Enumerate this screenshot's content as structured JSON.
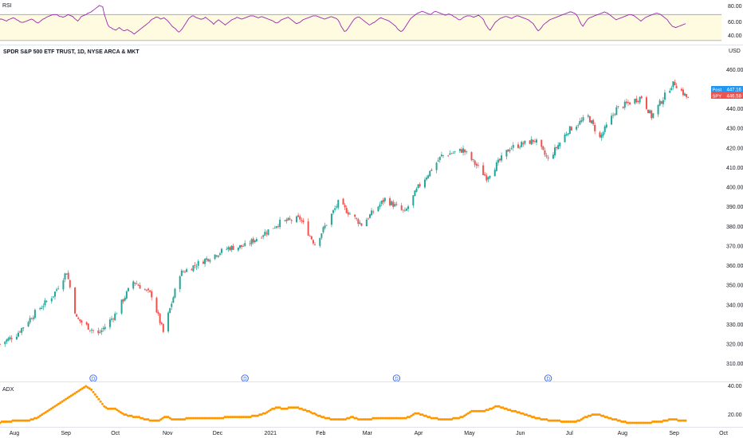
{
  "rsi_pane": {
    "title": "RSI",
    "ticks": [
      "80.00",
      "60.00",
      "40.00"
    ],
    "band": [
      30,
      70
    ],
    "range": [
      25,
      90
    ],
    "colors": {
      "line": "#9c27b0",
      "band_fill": "#fffbe0",
      "band_line": "#9e9e9e"
    },
    "values": [
      63,
      63,
      62,
      61,
      60,
      62,
      63,
      64,
      65,
      64,
      62,
      61,
      59,
      58,
      58,
      59,
      60,
      61,
      62,
      63,
      62,
      60,
      58,
      57,
      59,
      61,
      63,
      64,
      66,
      67,
      68,
      69,
      70,
      70,
      70,
      69,
      67,
      67,
      66,
      67,
      68,
      70,
      69,
      68,
      67,
      64,
      62,
      60,
      63,
      67,
      68,
      69,
      70,
      72,
      73,
      74,
      76,
      78,
      80,
      82,
      84,
      83,
      82,
      70,
      63,
      55,
      51,
      50,
      48,
      47,
      46,
      48,
      50,
      48,
      46,
      45,
      46,
      47,
      45,
      44,
      42,
      40,
      42,
      44,
      46,
      48,
      50,
      52,
      54,
      56,
      58,
      61,
      63,
      64,
      66,
      66,
      65,
      63,
      64,
      65,
      63,
      61,
      58,
      55,
      52,
      50,
      48,
      45,
      43,
      45,
      48,
      52,
      56,
      60,
      64,
      66,
      68,
      68,
      66,
      65,
      64,
      63,
      63,
      64,
      66,
      64,
      62,
      60,
      58,
      55,
      58,
      60,
      62,
      60,
      58,
      56,
      54,
      56,
      58,
      60,
      62,
      63,
      64,
      66,
      65,
      64,
      63,
      64,
      65,
      66,
      67,
      68,
      68,
      68,
      67,
      66,
      65,
      66,
      67,
      66,
      65,
      64,
      63,
      62,
      61,
      60,
      58,
      57,
      58,
      60,
      62,
      63,
      64,
      65,
      66,
      64,
      62,
      60,
      58,
      56,
      57,
      58,
      60,
      62,
      63,
      64,
      65,
      66,
      67,
      68,
      68,
      68,
      67,
      66,
      65,
      64,
      63,
      64,
      65,
      66,
      67,
      66,
      65,
      64,
      62,
      58,
      52,
      48,
      44,
      45,
      48,
      52,
      56,
      60,
      63,
      65,
      66,
      66,
      64,
      62,
      60,
      58,
      56,
      54,
      55,
      57,
      58,
      60,
      62,
      64,
      65,
      64,
      63,
      62,
      61,
      60,
      58,
      56,
      54,
      52,
      48,
      46,
      44,
      45,
      48,
      52,
      56,
      60,
      64,
      66,
      68,
      70,
      72,
      73,
      74,
      75,
      74,
      73,
      72,
      71,
      70,
      72,
      74,
      75,
      74,
      73,
      72,
      71,
      70,
      69,
      70,
      71,
      70,
      69,
      67,
      66,
      64,
      62,
      62,
      64,
      66,
      67,
      68,
      68,
      68,
      67,
      66,
      67,
      68,
      69,
      67,
      65,
      62,
      56,
      52,
      48,
      46,
      50,
      54,
      58,
      60,
      62,
      64,
      65,
      66,
      67,
      67,
      66,
      65,
      64,
      66,
      67,
      68,
      68,
      67,
      66,
      65,
      64,
      63,
      62,
      60,
      58,
      56,
      52,
      48,
      45,
      47,
      50,
      54,
      56,
      58,
      60,
      62,
      63,
      64,
      65,
      66,
      67,
      68,
      69,
      70,
      71,
      72,
      73,
      74,
      74,
      73,
      72,
      70,
      66,
      60,
      55,
      52,
      56,
      60,
      63,
      65,
      66,
      67,
      68,
      69,
      70,
      71,
      72,
      73,
      74,
      73,
      72,
      70,
      68,
      66,
      64,
      62,
      63,
      64,
      65,
      66,
      67,
      68,
      69,
      70,
      70,
      69,
      68,
      66,
      64,
      62,
      60,
      62,
      64,
      66,
      67,
      68,
      69,
      70,
      71,
      72,
      72,
      71,
      70,
      68,
      66,
      64,
      62,
      58,
      55,
      52,
      51,
      50,
      51,
      52,
      53,
      54,
      55,
      56
    ]
  },
  "main_pane": {
    "title": "SPDR S&P 500 ETF TRUST, 1D, NYSE ARCA & MKT",
    "currency": "USD",
    "ticks": [
      "460.00",
      "450.00",
      "440.00",
      "430.00",
      "420.00",
      "410.00",
      "400.00",
      "390.00",
      "380.00",
      "370.00",
      "360.00",
      "350.00",
      "340.00",
      "330.00",
      "320.00",
      "310.00"
    ],
    "price_labels": {
      "post": "Post",
      "post_value": "447.16",
      "symbol": "SPY",
      "symbol_value": "446.58"
    },
    "colors": {
      "up": "#26a69a",
      "down": "#ef5350",
      "post_tag": "#2196f3",
      "symbol_tag": "#ef5350"
    },
    "dividend_marker": "D"
  },
  "adx_pane": {
    "title": "ADX",
    "ticks": [
      "40.00",
      "20.00"
    ],
    "range": [
      12,
      47
    ],
    "colors": {
      "dots": "#ff9800"
    },
    "values": [
      14,
      15,
      15,
      15,
      15,
      15,
      15,
      16,
      16,
      16,
      16,
      16,
      16,
      16,
      16,
      16,
      16,
      17,
      17,
      18,
      18,
      19,
      20,
      21,
      22,
      23,
      24,
      25,
      26,
      27,
      28,
      29,
      30,
      31,
      32,
      33,
      34,
      35,
      36,
      37,
      38,
      39,
      40,
      41,
      42,
      43,
      44,
      45,
      44,
      43,
      42,
      40,
      38,
      36,
      34,
      32,
      30,
      28,
      27,
      26,
      26,
      26,
      26,
      26,
      25,
      24,
      23,
      22,
      21,
      21,
      20,
      20,
      20,
      19,
      19,
      19,
      19,
      18,
      18,
      17,
      17,
      17,
      16,
      16,
      16,
      16,
      16,
      16,
      17,
      18,
      19,
      19,
      19,
      18,
      17,
      17,
      17,
      17,
      17,
      17,
      17,
      17,
      18,
      18,
      18,
      18,
      18,
      18,
      18,
      18,
      18,
      18,
      18,
      18,
      18,
      18,
      18,
      18,
      18,
      18,
      18,
      18,
      18,
      19,
      19,
      19,
      19,
      19,
      19,
      19,
      19,
      19,
      19,
      19,
      19,
      19,
      19,
      19,
      20,
      20,
      20,
      20,
      21,
      21,
      22,
      22,
      23,
      24,
      25,
      26,
      26,
      27,
      27,
      27,
      26,
      26,
      26,
      26,
      27,
      27,
      27,
      27,
      27,
      27,
      26,
      26,
      25,
      25,
      24,
      24,
      23,
      22,
      22,
      21,
      20,
      20,
      19,
      19,
      18,
      18,
      18,
      17,
      17,
      17,
      17,
      17,
      17,
      17,
      17,
      17,
      18,
      18,
      19,
      19,
      18,
      18,
      17,
      17,
      17,
      17,
      17,
      17,
      17,
      17,
      18,
      18,
      18,
      18,
      18,
      18,
      18,
      18,
      18,
      18,
      18,
      18,
      18,
      18,
      18,
      18,
      18,
      18,
      18,
      19,
      19,
      20,
      21,
      22,
      22,
      22,
      21,
      21,
      20,
      20,
      19,
      19,
      18,
      18,
      18,
      18,
      17,
      17,
      17,
      17,
      17,
      17,
      17,
      17,
      18,
      18,
      18,
      18,
      19,
      19,
      20,
      21,
      22,
      23,
      24,
      24,
      24,
      24,
      24,
      24,
      24,
      24,
      25,
      25,
      26,
      26,
      27,
      28,
      28,
      28,
      27,
      27,
      26,
      26,
      25,
      25,
      24,
      24,
      24,
      23,
      23,
      22,
      22,
      21,
      21,
      20,
      20,
      19,
      19,
      18,
      18,
      18,
      17,
      17,
      17,
      17,
      16,
      16,
      16,
      16,
      16,
      16,
      16,
      15,
      15,
      15,
      15,
      15,
      15,
      15,
      15,
      15,
      16,
      16,
      17,
      18,
      19,
      19,
      20,
      20,
      21,
      21,
      21,
      21,
      21,
      20,
      20,
      19,
      19,
      18,
      18,
      17,
      17,
      17,
      16,
      16,
      15,
      15,
      15,
      14,
      14,
      14,
      14,
      14,
      14,
      14,
      14,
      14,
      14,
      14,
      14,
      14,
      14,
      15,
      15,
      15,
      15,
      15,
      15,
      16,
      16,
      16,
      17,
      17,
      17,
      17,
      17,
      16,
      16,
      16,
      16,
      16
    ]
  },
  "x_axis": {
    "labels": [
      "Aug",
      "Sep",
      "Oct",
      "Nov",
      "Dec",
      "2021",
      "Feb",
      "Mar",
      "Apr",
      "May",
      "Jun",
      "Jul",
      "Aug",
      "Sep",
      "Oct"
    ]
  },
  "chart_data": {
    "type": "candlestick",
    "title": "SPDR S&P 500 ETF TRUST, 1D, NYSE ARCA & MKT",
    "ylabel": "USD",
    "ylim": [
      305,
      465
    ],
    "x_range": [
      "2020-07-24",
      "2021-09-30"
    ],
    "series": [
      {
        "name": "SPY",
        "close_approx": [
          [
            "2020-07-24",
            320
          ],
          [
            "2020-08-03",
            325
          ],
          [
            "2020-08-14",
            336
          ],
          [
            "2020-08-25",
            345
          ],
          [
            "2020-09-02",
            357
          ],
          [
            "2020-09-08",
            333
          ],
          [
            "2020-09-21",
            325
          ],
          [
            "2020-10-01",
            335
          ],
          [
            "2020-10-12",
            352
          ],
          [
            "2020-10-23",
            345
          ],
          [
            "2020-10-30",
            326
          ],
          [
            "2020-11-09",
            356
          ],
          [
            "2020-11-24",
            363
          ],
          [
            "2020-12-08",
            369
          ],
          [
            "2020-12-18",
            370
          ],
          [
            "2021-01-08",
            382
          ],
          [
            "2021-01-20",
            384
          ],
          [
            "2021-01-29",
            371
          ],
          [
            "2021-02-12",
            392
          ],
          [
            "2021-02-26",
            381
          ],
          [
            "2021-03-12",
            394
          ],
          [
            "2021-03-24",
            387
          ],
          [
            "2021-04-01",
            400
          ],
          [
            "2021-04-15",
            416
          ],
          [
            "2021-04-28",
            419
          ],
          [
            "2021-05-12",
            405
          ],
          [
            "2021-05-26",
            420
          ],
          [
            "2021-06-10",
            424
          ],
          [
            "2021-06-18",
            414
          ],
          [
            "2021-06-30",
            429
          ],
          [
            "2021-07-12",
            436
          ],
          [
            "2021-07-19",
            425
          ],
          [
            "2021-07-29",
            440
          ],
          [
            "2021-08-13",
            446
          ],
          [
            "2021-08-19",
            436
          ],
          [
            "2021-08-31",
            452
          ],
          [
            "2021-09-02",
            453
          ],
          [
            "2021-09-10",
            445
          ]
        ]
      }
    ],
    "dividends": [
      "2020-09-18",
      "2020-12-18",
      "2021-03-19",
      "2021-06-18"
    ],
    "last": {
      "post": 447.16,
      "close": 446.58
    }
  }
}
